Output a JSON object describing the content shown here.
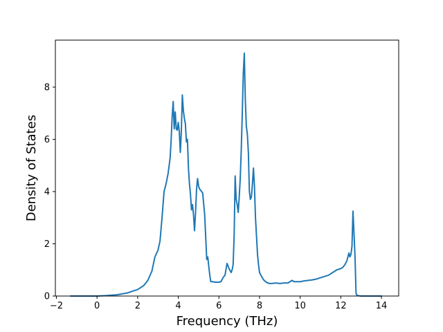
{
  "chart_data": {
    "type": "line",
    "title": "",
    "xlabel": "Frequency (THz)",
    "ylabel": "Density of States",
    "xlim": [
      -2.05,
      14.85
    ],
    "ylim": [
      0,
      9.8
    ],
    "xticks": [
      -2,
      0,
      2,
      4,
      6,
      8,
      10,
      12,
      14
    ],
    "xtick_labels": [
      "−2",
      "0",
      "2",
      "4",
      "6",
      "8",
      "10",
      "12",
      "14"
    ],
    "yticks": [
      0,
      2,
      4,
      6,
      8
    ],
    "ytick_labels": [
      "0",
      "2",
      "4",
      "6",
      "8"
    ],
    "grid": false,
    "legend": "none",
    "series": [
      {
        "color": "#1f77b4",
        "x": [
          -1.3,
          -0.5,
          0.0,
          0.5,
          1.0,
          1.5,
          2.0,
          2.3,
          2.5,
          2.7,
          2.85,
          3.0,
          3.1,
          3.2,
          3.3,
          3.4,
          3.5,
          3.55,
          3.6,
          3.65,
          3.7,
          3.75,
          3.8,
          3.85,
          3.9,
          3.95,
          4.0,
          4.05,
          4.1,
          4.15,
          4.2,
          4.25,
          4.3,
          4.35,
          4.4,
          4.45,
          4.5,
          4.55,
          4.6,
          4.65,
          4.7,
          4.75,
          4.8,
          4.85,
          4.9,
          4.95,
          5.0,
          5.05,
          5.1,
          5.15,
          5.2,
          5.3,
          5.4,
          5.45,
          5.5,
          5.55,
          5.6,
          5.65,
          5.7,
          5.8,
          5.9,
          6.0,
          6.1,
          6.2,
          6.3,
          6.4,
          6.5,
          6.6,
          6.65,
          6.7,
          6.75,
          6.8,
          6.85,
          6.9,
          6.95,
          7.0,
          7.05,
          7.1,
          7.15,
          7.2,
          7.25,
          7.3,
          7.35,
          7.4,
          7.45,
          7.5,
          7.55,
          7.6,
          7.65,
          7.7,
          7.75,
          7.8,
          7.85,
          7.9,
          7.95,
          8.0,
          8.1,
          8.2,
          8.3,
          8.4,
          8.5,
          8.6,
          8.8,
          9.0,
          9.2,
          9.4,
          9.6,
          9.7,
          9.8,
          10.0,
          10.2,
          10.4,
          10.6,
          10.8,
          11.0,
          11.2,
          11.4,
          11.6,
          11.8,
          12.0,
          12.1,
          12.2,
          12.3,
          12.35,
          12.4,
          12.45,
          12.5,
          12.55,
          12.6,
          12.65,
          12.7,
          12.75,
          12.8,
          13.0,
          14.0
        ],
        "y": [
          0.0,
          0.0,
          0.0,
          0.02,
          0.05,
          0.12,
          0.25,
          0.4,
          0.6,
          0.95,
          1.5,
          1.75,
          2.1,
          3.0,
          4.0,
          4.3,
          4.7,
          5.0,
          5.3,
          6.0,
          6.9,
          7.45,
          6.4,
          7.05,
          6.4,
          6.35,
          6.65,
          6.3,
          5.5,
          6.3,
          7.7,
          7.1,
          6.8,
          6.6,
          5.9,
          6.0,
          4.9,
          4.3,
          3.9,
          3.3,
          3.5,
          3.1,
          2.5,
          3.2,
          4.1,
          4.5,
          4.2,
          4.1,
          4.05,
          4.0,
          3.95,
          3.1,
          1.4,
          1.5,
          1.15,
          0.8,
          0.55,
          0.55,
          0.55,
          0.53,
          0.53,
          0.53,
          0.55,
          0.7,
          0.8,
          1.25,
          1.05,
          0.9,
          1.0,
          1.2,
          2.3,
          4.6,
          3.7,
          3.5,
          3.2,
          3.8,
          4.5,
          5.6,
          7.0,
          8.5,
          9.3,
          7.5,
          6.5,
          6.2,
          5.5,
          4.0,
          3.7,
          3.8,
          4.3,
          4.9,
          4.2,
          3.0,
          2.3,
          1.6,
          1.2,
          0.9,
          0.75,
          0.62,
          0.55,
          0.5,
          0.48,
          0.48,
          0.5,
          0.48,
          0.5,
          0.5,
          0.6,
          0.55,
          0.55,
          0.55,
          0.58,
          0.6,
          0.62,
          0.65,
          0.7,
          0.75,
          0.8,
          0.9,
          1.0,
          1.05,
          1.1,
          1.2,
          1.35,
          1.5,
          1.65,
          1.5,
          1.6,
          1.9,
          3.25,
          2.4,
          1.5,
          0.1,
          0.02,
          0.0,
          0.0
        ]
      }
    ]
  }
}
